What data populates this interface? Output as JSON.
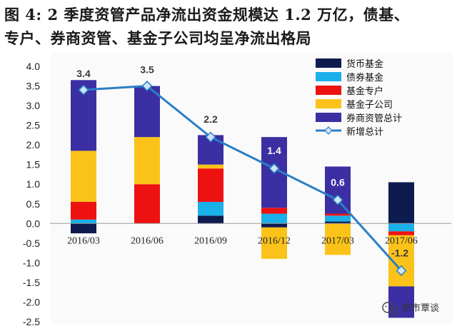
{
  "caption": {
    "line1": "图 4:  2 季度资管产品净流出资金规模达 1.2 万亿，债基、",
    "line2": "专户、券商资管、基金子公司均呈净流出格局"
  },
  "watermark": {
    "text": "债市覃谈",
    "icon": "wechat-icon"
  },
  "colors": {
    "货币基金": "#0d1b4f",
    "债券基金": "#1ab0ea",
    "基金专户": "#ee1111",
    "基金子公司": "#fbc319",
    "券商资管总计": "#3b2fa3",
    "新增总计": "#2a7ec6"
  },
  "chart_data": {
    "type": "bar",
    "stacked": true,
    "categories": [
      "2016/03",
      "2016/06",
      "2016/09",
      "2016/12",
      "2017/03",
      "2017/06"
    ],
    "ylim": [
      -2.5,
      4.0
    ],
    "yticks": [
      "4.0",
      "3.5",
      "3.0",
      "2.5",
      "2.0",
      "1.5",
      "1.0",
      "0.5",
      "0.0",
      "-0.5",
      "-1.0",
      "-1.5",
      "-2.0",
      "-2.5"
    ],
    "legend_position": "top-right",
    "series": [
      {
        "name": "货币基金",
        "values": [
          -0.25,
          0.0,
          0.2,
          -0.1,
          0.05,
          1.05
        ]
      },
      {
        "name": "债券基金",
        "values": [
          0.1,
          0.0,
          0.35,
          0.25,
          0.15,
          -0.2
        ]
      },
      {
        "name": "基金专户",
        "values": [
          0.45,
          1.0,
          0.85,
          0.15,
          0.05,
          -0.1
        ]
      },
      {
        "name": "基金子公司",
        "values": [
          1.3,
          1.2,
          0.1,
          -0.8,
          -0.8,
          -1.3
        ]
      },
      {
        "name": "券商资管总计",
        "values": [
          1.8,
          1.3,
          0.75,
          1.8,
          1.2,
          -0.8
        ]
      }
    ],
    "line": {
      "name": "新增总计",
      "values": [
        3.4,
        3.5,
        2.2,
        1.4,
        0.6,
        -1.2
      ],
      "labels": [
        "3.4",
        "3.5",
        "2.2",
        "1.4",
        "0.6",
        "-1.2"
      ]
    }
  }
}
